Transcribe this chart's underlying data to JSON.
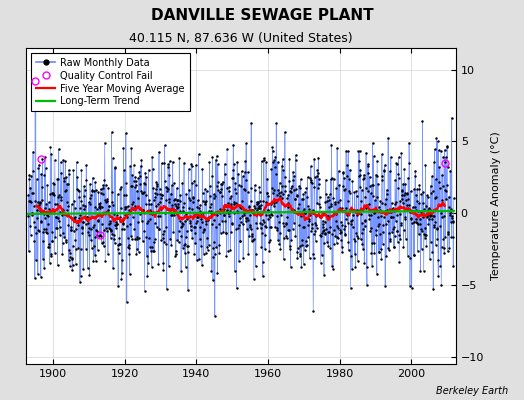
{
  "title": "DANVILLE SEWAGE PLANT",
  "subtitle": "40.115 N, 87.636 W (United States)",
  "ylabel": "Temperature Anomaly (°C)",
  "year_start": 1893,
  "year_end": 2012,
  "ylim": [
    -10.5,
    11.5
  ],
  "yticks": [
    -10,
    -5,
    0,
    5,
    10
  ],
  "xticks": [
    1900,
    1920,
    1940,
    1960,
    1980,
    2000
  ],
  "line_color": "#6688ff",
  "moving_avg_color": "#ff0000",
  "trend_color": "#00bb00",
  "legend_labels": [
    "Raw Monthly Data",
    "Quality Control Fail",
    "Five Year Moving Average",
    "Long-Term Trend"
  ],
  "fig_bg_color": "#e0e0e0",
  "plot_bg_color": "#ffffff",
  "grid_color": "#cccccc",
  "watermark": "Berkeley Earth",
  "seed": 37
}
